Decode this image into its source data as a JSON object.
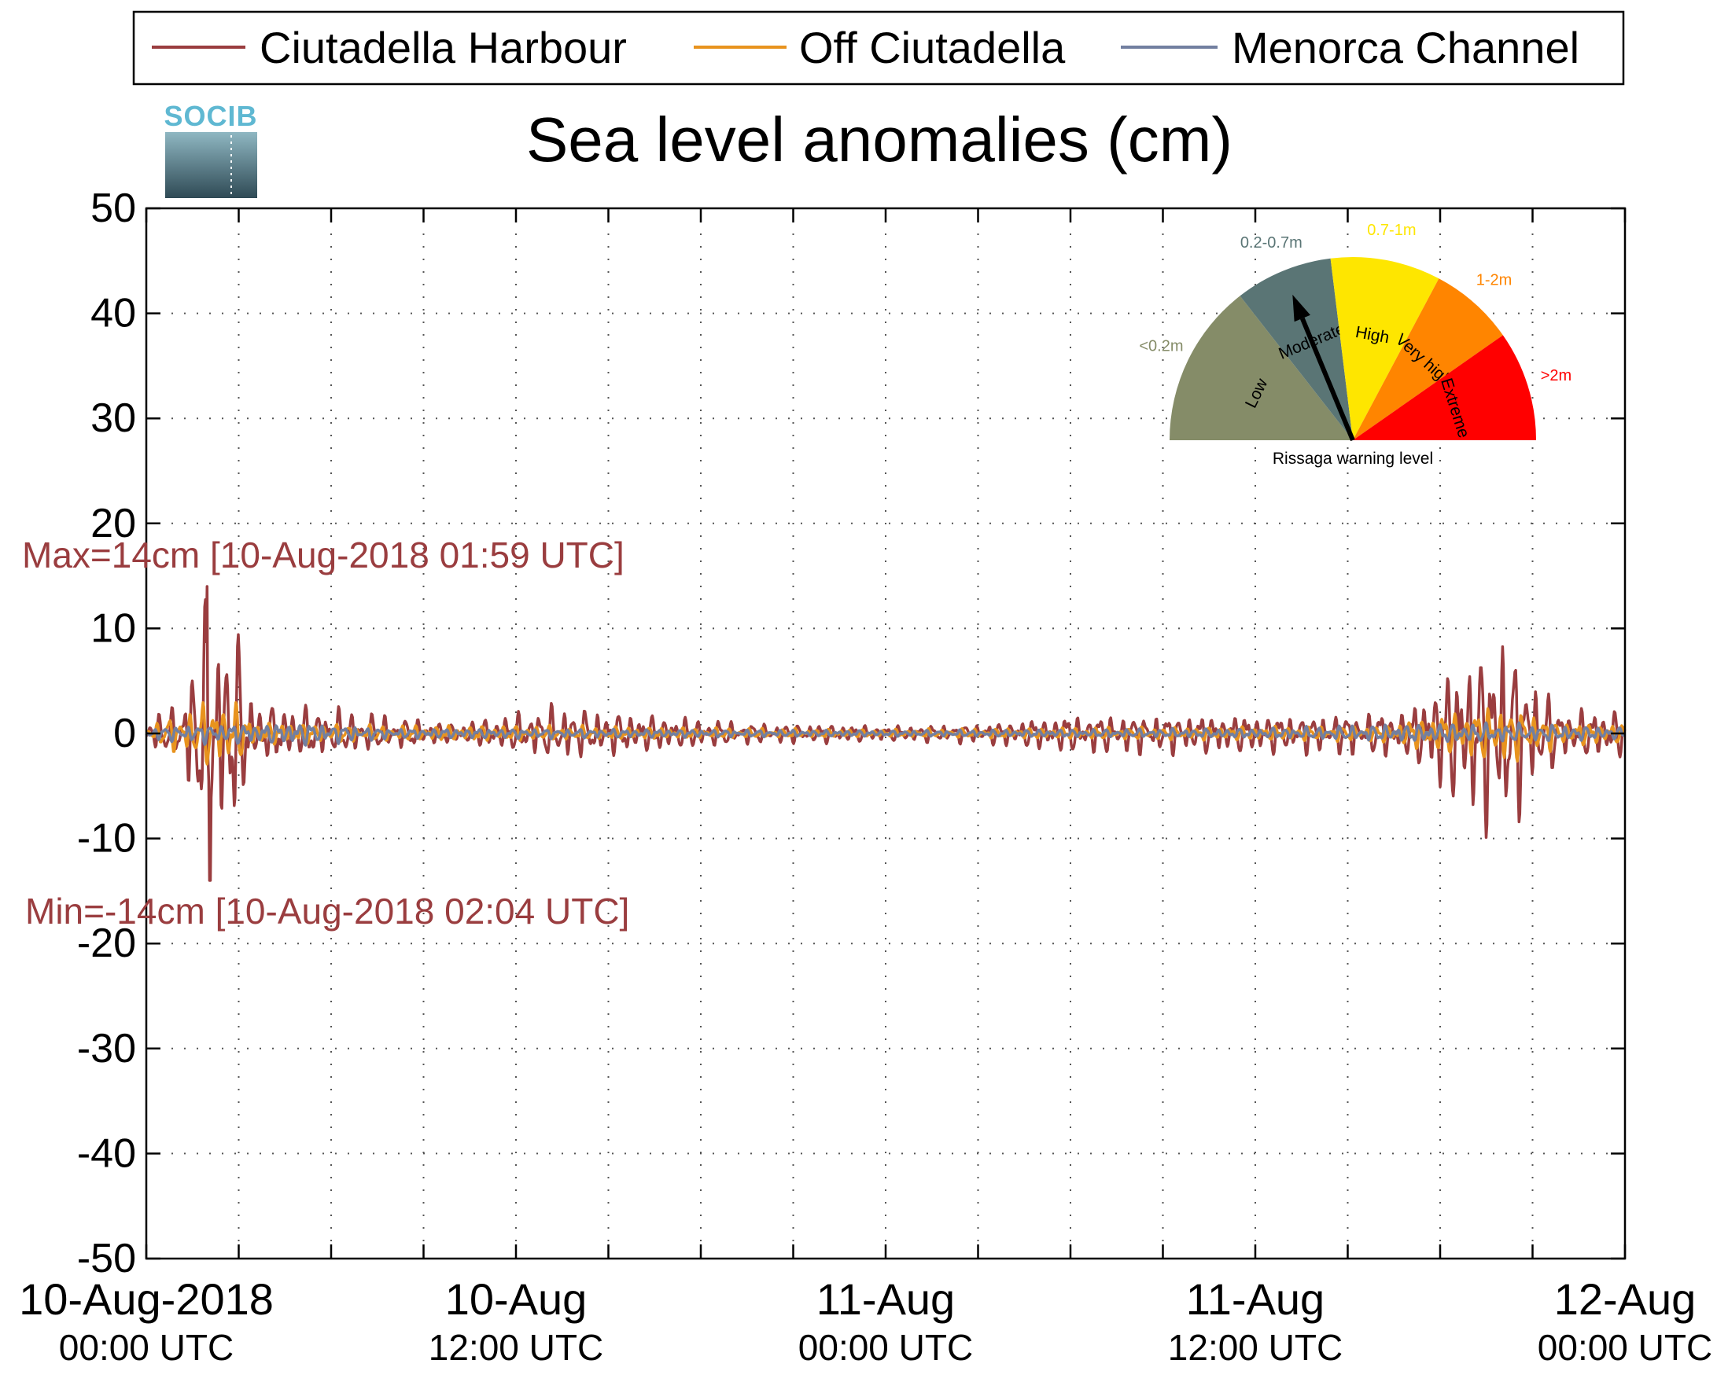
{
  "chart_data": {
    "type": "line",
    "title": "Sea level anomalies (cm)",
    "ylim": [
      -50,
      50
    ],
    "yticks": [
      -50,
      -40,
      -30,
      -20,
      -10,
      0,
      10,
      20,
      30,
      40,
      50
    ],
    "xlim_hours": [
      0,
      48
    ],
    "xticks": [
      {
        "hour": 0,
        "date": "10-Aug-2018",
        "time": "00:00 UTC"
      },
      {
        "hour": 12,
        "date": "10-Aug",
        "time": "12:00 UTC"
      },
      {
        "hour": 24,
        "date": "11-Aug",
        "time": "00:00 UTC"
      },
      {
        "hour": 36,
        "date": "11-Aug",
        "time": "12:00 UTC"
      },
      {
        "hour": 48,
        "date": "12-Aug",
        "time": "00:00 UTC"
      }
    ],
    "minor_xticks_hours": [
      3,
      6,
      9,
      15,
      18,
      21,
      27,
      30,
      33,
      39,
      42,
      45
    ],
    "grid": true,
    "legend_position": "top",
    "series": [
      {
        "name": "Ciutadella Harbour",
        "color": "#9a3d3f",
        "envelope": [
          [
            0,
            2
          ],
          [
            1,
            2.5
          ],
          [
            1.5,
            8
          ],
          [
            2,
            13
          ],
          [
            2.5,
            11
          ],
          [
            3,
            10
          ],
          [
            3.5,
            3
          ],
          [
            6,
            2.5
          ],
          [
            10,
            1
          ],
          [
            12,
            2
          ],
          [
            13.5,
            3
          ],
          [
            14,
            2.5
          ],
          [
            18,
            1.5
          ],
          [
            20,
            1
          ],
          [
            22,
            1
          ],
          [
            24,
            0.8
          ],
          [
            27,
            1
          ],
          [
            30,
            2
          ],
          [
            33,
            2
          ],
          [
            38,
            2
          ],
          [
            41,
            2.5
          ],
          [
            42,
            6
          ],
          [
            44,
            11
          ],
          [
            45,
            6
          ],
          [
            46,
            2.5
          ],
          [
            48,
            2.5
          ]
        ],
        "extremes": {
          "max": 14,
          "max_time": "10-Aug-2018 01:59 UTC",
          "min": -14,
          "min_time": "10-Aug-2018 02:04 UTC"
        }
      },
      {
        "name": "Off Ciutadella",
        "color": "#e8931e",
        "envelope": [
          [
            0,
            0.8
          ],
          [
            1.5,
            2.5
          ],
          [
            2,
            3.5
          ],
          [
            3,
            3
          ],
          [
            3.5,
            1.2
          ],
          [
            8,
            0.8
          ],
          [
            12,
            0.8
          ],
          [
            20,
            0.5
          ],
          [
            24,
            0.4
          ],
          [
            30,
            0.6
          ],
          [
            40,
            0.8
          ],
          [
            42,
            2
          ],
          [
            44,
            3
          ],
          [
            46,
            1.2
          ],
          [
            48,
            1
          ]
        ]
      },
      {
        "name": "Menorca Channel",
        "color": "#727fa0",
        "envelope": [
          [
            0,
            0.6
          ],
          [
            2,
            1
          ],
          [
            3,
            1
          ],
          [
            4,
            1
          ],
          [
            5,
            1.2
          ],
          [
            8,
            0.5
          ],
          [
            12,
            0.5
          ],
          [
            24,
            0.3
          ],
          [
            36,
            0.5
          ],
          [
            42,
            1
          ],
          [
            44,
            1
          ],
          [
            48,
            0.6
          ]
        ]
      }
    ],
    "annotations": {
      "max_label": "Max=14cm [10-Aug-2018 01:59 UTC]",
      "min_label": "Min=-14cm [10-Aug-2018 02:04 UTC]"
    },
    "logo_text": "SOCIB",
    "gauge": {
      "caption": "Rissaga warning level",
      "level": "Moderate",
      "segments": [
        {
          "name": "Low",
          "range": "<0.2m",
          "color": "#858c68"
        },
        {
          "name": "Moderate",
          "range": "0.2-0.7m",
          "color": "#5a7575"
        },
        {
          "name": "High",
          "range": "0.7-1m",
          "color": "#fee600"
        },
        {
          "name": "Very high",
          "range": "1-2m",
          "color": "#ff8500"
        },
        {
          "name": "Extreme",
          "range": ">2m",
          "color": "#ff0000"
        }
      ]
    }
  }
}
